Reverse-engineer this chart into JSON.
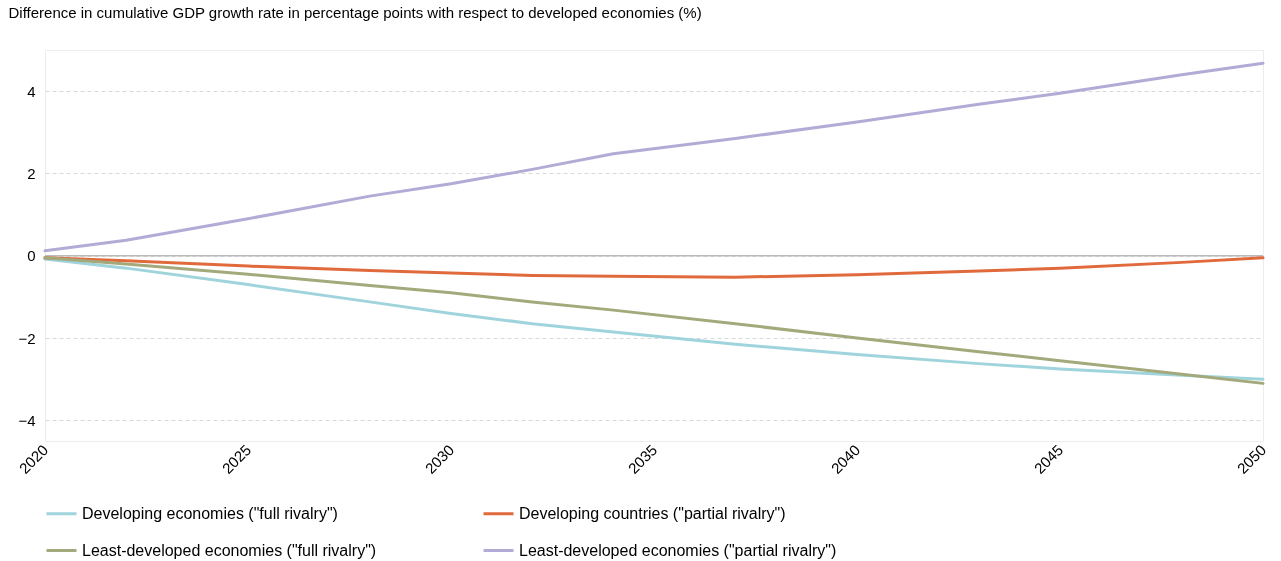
{
  "chart_data": {
    "type": "line",
    "ylabel": "Difference in cumulative GDP growth  rate in percentage points with respect to developed economies (%)",
    "x": [
      2020,
      2022,
      2025,
      2028,
      2030,
      2032,
      2034,
      2037,
      2040,
      2043,
      2045,
      2048,
      2050
    ],
    "xlim": [
      2020,
      2050
    ],
    "xticks": [
      2020,
      2025,
      2030,
      2035,
      2040,
      2045,
      2050
    ],
    "ylim": [
      -4.5,
      5
    ],
    "yticks": [
      -4,
      -2,
      0,
      2,
      4
    ],
    "grid": "y",
    "legend": "bottom",
    "marker": "none",
    "line_style": "solid",
    "ref_lines": [
      {
        "axis": "y",
        "value": 0,
        "color": "#bbbbbb"
      }
    ],
    "series": [
      {
        "name": "Developing economies (\"full rivalry\")",
        "color": "#9fd4dc",
        "values": [
          -0.08,
          -0.3,
          -0.7,
          -1.12,
          -1.4,
          -1.65,
          -1.85,
          -2.15,
          -2.4,
          -2.62,
          -2.75,
          -2.9,
          -3.0
        ]
      },
      {
        "name": "Developing countries (\"partial rivalry\")",
        "color": "#e06a3c",
        "values": [
          -0.05,
          -0.12,
          -0.25,
          -0.36,
          -0.42,
          -0.48,
          -0.5,
          -0.52,
          -0.46,
          -0.37,
          -0.3,
          -0.16,
          -0.05
        ]
      },
      {
        "name": "Least-developed economies (\"full rivalry\")",
        "color": "#a4a97c",
        "values": [
          -0.05,
          -0.2,
          -0.45,
          -0.72,
          -0.9,
          -1.12,
          -1.32,
          -1.65,
          -2.0,
          -2.33,
          -2.55,
          -2.88,
          -3.1
        ]
      },
      {
        "name": "Least-developed economies (\"partial rivalry\")",
        "color": "#b3aad6",
        "values": [
          0.12,
          0.38,
          0.9,
          1.45,
          1.75,
          2.1,
          2.48,
          2.85,
          3.25,
          3.68,
          3.95,
          4.4,
          4.68
        ]
      }
    ]
  }
}
